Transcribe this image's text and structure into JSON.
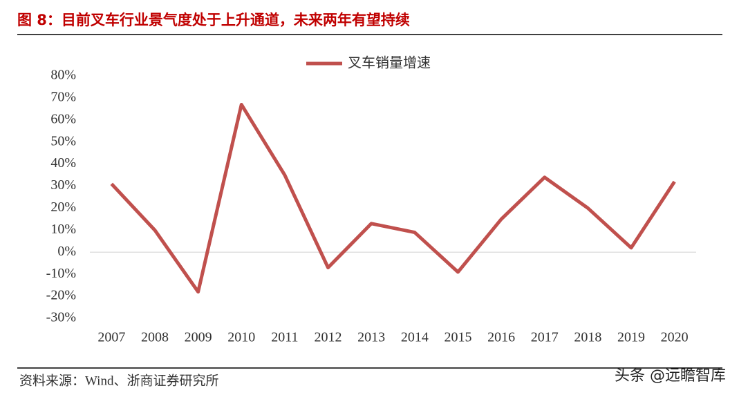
{
  "chart_data": {
    "type": "line",
    "title": "图 8：目前叉车行业景气度处于上升通道，未来两年有望持续",
    "categories": [
      "2007",
      "2008",
      "2009",
      "2010",
      "2011",
      "2012",
      "2013",
      "2014",
      "2015",
      "2016",
      "2017",
      "2018",
      "2019",
      "2020"
    ],
    "series": [
      {
        "name": "叉车销量增速",
        "color": "#c0504d",
        "values": [
          31,
          10,
          -18,
          67,
          35,
          -7,
          13,
          9,
          -9,
          15,
          34,
          20,
          2,
          32
        ]
      }
    ],
    "ylim": [
      -30,
      80
    ],
    "yticks": [
      {
        "value": 80,
        "label": "80%"
      },
      {
        "value": 70,
        "label": "70%"
      },
      {
        "value": 60,
        "label": "60%"
      },
      {
        "value": 50,
        "label": "50%"
      },
      {
        "value": 40,
        "label": "40%"
      },
      {
        "value": 30,
        "label": "30%"
      },
      {
        "value": 20,
        "label": "20%"
      },
      {
        "value": 10,
        "label": "10%"
      },
      {
        "value": 0,
        "label": "0%"
      },
      {
        "value": -10,
        "label": "-10%"
      },
      {
        "value": -20,
        "label": "-20%"
      },
      {
        "value": -30,
        "label": "-30%"
      }
    ],
    "legend": "top",
    "source": "资料来源：Wind、浙商证券研究所",
    "watermark": "头条 @远瞻智库"
  }
}
